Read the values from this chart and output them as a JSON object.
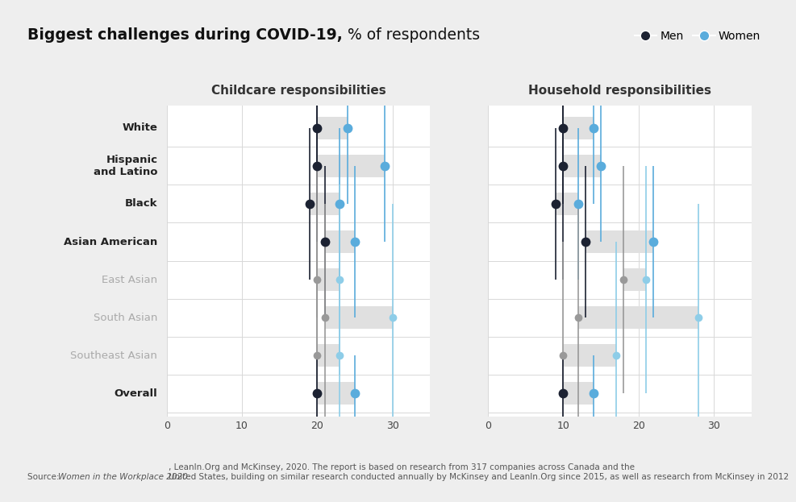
{
  "title_bold": "Biggest challenges during COVID-19,",
  "title_normal": " % of respondents",
  "subtitle_left": "Childcare responsibilities",
  "subtitle_right": "Household responsibilities",
  "background_color": "#eeeeee",
  "plot_bg_color": "#ffffff",
  "categories": [
    "White",
    "Hispanic\nand Latino",
    "Black",
    "Asian American",
    "East Asian",
    "South Asian",
    "Southeast Asian",
    "Overall"
  ],
  "is_bold": [
    true,
    true,
    true,
    true,
    false,
    false,
    false,
    true
  ],
  "childcare_men": [
    20,
    20,
    19,
    21,
    20,
    21,
    20,
    20
  ],
  "childcare_women": [
    24,
    29,
    23,
    25,
    23,
    30,
    23,
    25
  ],
  "childcare_men_err": [
    2.0,
    4.0,
    2.0,
    2.0,
    3.0,
    3.0,
    3.0,
    1.0
  ],
  "childcare_women_err": [
    2.0,
    2.0,
    2.0,
    2.0,
    2.5,
    3.0,
    2.0,
    1.0
  ],
  "household_men": [
    10,
    10,
    9,
    13,
    18,
    12,
    10,
    10
  ],
  "household_women": [
    14,
    15,
    12,
    22,
    21,
    28,
    17,
    14
  ],
  "household_men_err": [
    2.0,
    3.0,
    2.0,
    2.0,
    3.0,
    3.0,
    3.0,
    1.0
  ],
  "household_women_err": [
    2.0,
    2.0,
    2.0,
    2.0,
    3.0,
    3.0,
    3.0,
    1.0
  ],
  "xlim": [
    0,
    35
  ],
  "xticks": [
    0,
    10,
    20,
    30
  ],
  "men_color_bold": "#1c2232",
  "men_color_muted": "#999999",
  "women_color_bold": "#5aacdc",
  "women_color_muted": "#8ecde8",
  "band_color": "#e0e0e0",
  "grid_color": "#d8d8d8",
  "legend_men_color": "#1c2232",
  "legend_women_color": "#5aacdc",
  "source_normal1": "Source: ",
  "source_italic": "Women in the Workplace 2020",
  "source_normal2": ", LeanIn.Org and McKinsey, 2020. The report is based on research from 317 companies across Canada and the\nUnited States, building on similar research conducted annually by McKinsey and LeanIn.Org since 2015, as well as research from McKinsey in 2012"
}
